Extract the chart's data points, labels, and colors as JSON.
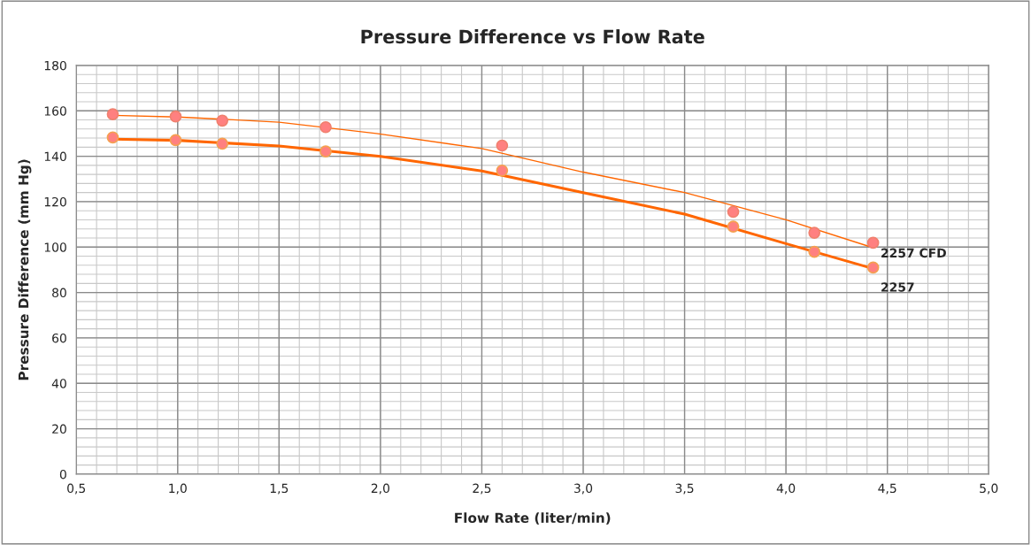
{
  "chart_data": {
    "type": "scatter",
    "title": "Pressure Difference vs Flow Rate",
    "xlabel": "Flow Rate (liter/min)",
    "ylabel": "Pressure Difference (mm Hg)",
    "xlim": [
      0.5,
      5.0
    ],
    "ylim": [
      0,
      180
    ],
    "xticks": [
      {
        "value": 0.5,
        "label": "0,5"
      },
      {
        "value": 1.0,
        "label": "1,0"
      },
      {
        "value": 1.5,
        "label": "1,5"
      },
      {
        "value": 2.0,
        "label": "2,0"
      },
      {
        "value": 2.5,
        "label": "2,5"
      },
      {
        "value": 3.0,
        "label": "3,0"
      },
      {
        "value": 3.5,
        "label": "3,5"
      },
      {
        "value": 4.0,
        "label": "4,0"
      },
      {
        "value": 4.5,
        "label": "4,5"
      },
      {
        "value": 5.0,
        "label": "5,0"
      }
    ],
    "yticks": [
      0,
      20,
      40,
      60,
      80,
      100,
      120,
      140,
      160,
      180
    ],
    "grid": true,
    "legend": false,
    "series": [
      {
        "type": "line",
        "marker": "none",
        "color": "#ff6600",
        "x": [
          0.68,
          1.0,
          1.5,
          1.98,
          2.5,
          3.0,
          3.5,
          4.0,
          4.43
        ],
        "values": [
          158,
          157.3,
          155,
          150,
          143.4,
          133,
          124,
          112,
          99.7
        ]
      },
      {
        "type": "line",
        "marker": "none",
        "color": "#ff6600",
        "x": [
          0.68,
          1.0,
          1.5,
          2.0,
          2.5,
          3.0,
          3.5,
          4.0,
          4.43
        ],
        "values": [
          147.5,
          147,
          144.5,
          139.9,
          133.5,
          124,
          114.5,
          101.5,
          90.5
        ]
      },
      {
        "marker": "circle",
        "name": "2257 CFD",
        "color": "#f0806e",
        "x": [
          0.68,
          0.99,
          1.22,
          1.73,
          2.6,
          3.74,
          4.14,
          4.43
        ],
        "values": [
          158.5,
          157.5,
          155.7,
          152.8,
          144.7,
          115.5,
          106.3,
          101.9
        ]
      },
      {
        "marker": "circle",
        "name": "2257",
        "color": "#f5a050",
        "x": [
          0.68,
          0.99,
          1.22,
          1.73,
          2.6,
          3.74,
          4.14,
          4.43
        ],
        "values": [
          148.3,
          147.1,
          145.5,
          142.1,
          133.7,
          109,
          97.9,
          91
        ]
      }
    ]
  }
}
